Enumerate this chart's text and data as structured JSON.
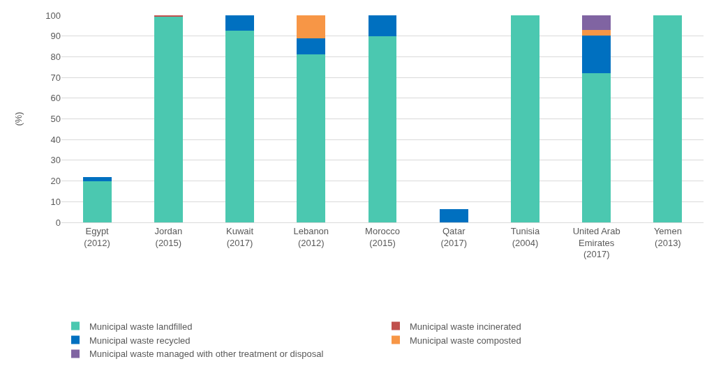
{
  "chart_data": {
    "type": "bar",
    "stacked": true,
    "ylabel": "(%)",
    "categories": [
      "Egypt\n(2012)",
      "Jordan\n(2015)",
      "Kuwait\n(2017)",
      "Lebanon\n(2012)",
      "Morocco\n(2015)",
      "Qatar\n(2017)",
      "Tunisia\n(2004)",
      "United Arab\nEmirates\n(2017)",
      "Yemen\n(2013)"
    ],
    "series": [
      {
        "name": "Municipal waste landfilled",
        "color": "#4bc8b0",
        "values": [
          20,
          99.3,
          92.7,
          81,
          90,
          null,
          100,
          72,
          100
        ]
      },
      {
        "name": "Municipal waste incinerated",
        "color": "#c0504d",
        "values": [
          null,
          0.7,
          null,
          null,
          null,
          null,
          null,
          null,
          null
        ]
      },
      {
        "name": "Municipal waste recycled",
        "color": "#0070c0",
        "values": [
          2,
          null,
          7.3,
          8,
          10,
          6.4,
          null,
          18.2,
          null
        ]
      },
      {
        "name": "Municipal waste composted",
        "color": "#f79646",
        "values": [
          null,
          null,
          null,
          11,
          null,
          null,
          null,
          2.8,
          null
        ]
      },
      {
        "name": "Municipal waste managed with other treatment or disposal",
        "color": "#8064a2",
        "values": [
          null,
          null,
          null,
          null,
          null,
          null,
          null,
          7,
          null
        ]
      }
    ],
    "ylim": [
      0,
      100
    ],
    "yticks": [
      0,
      10,
      20,
      30,
      40,
      50,
      60,
      70,
      80,
      90,
      100
    ],
    "grid": "y",
    "legend": "bottom"
  }
}
